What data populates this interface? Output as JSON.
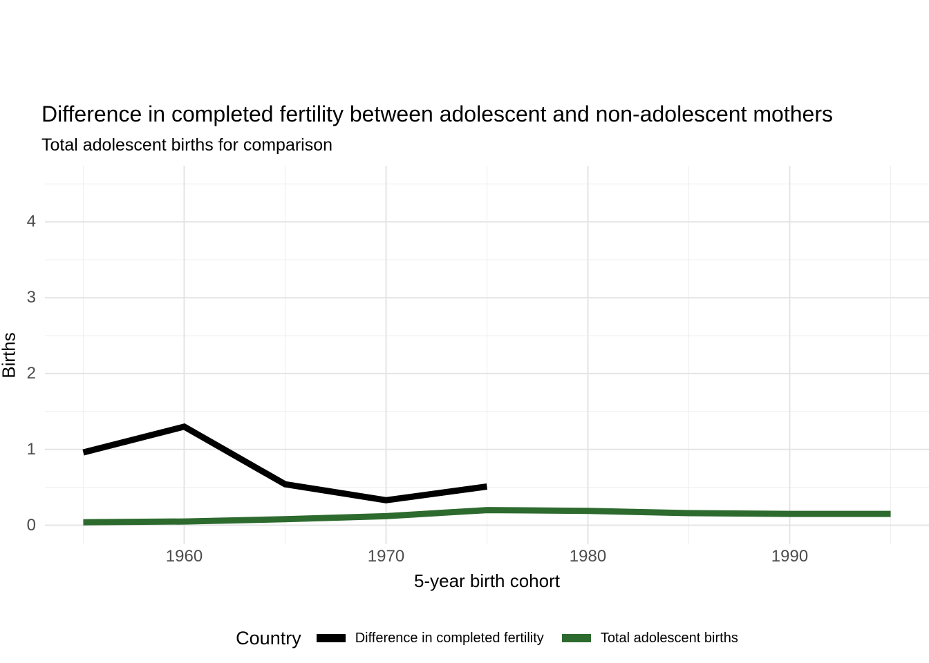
{
  "title": "Difference in completed fertility between adolescent and non-adolescent mothers",
  "subtitle": "Total adolescent births for comparison",
  "axes": {
    "x_label": "5-year birth cohort",
    "y_label": "Births"
  },
  "legend": {
    "title": "Country",
    "entries": [
      {
        "label": "Difference in completed fertility",
        "color": "#000000"
      },
      {
        "label": "Total adolescent births",
        "color": "#2d6a2e"
      }
    ]
  },
  "chart_data": {
    "type": "line",
    "x": [
      1955,
      1960,
      1965,
      1970,
      1975,
      1980,
      1985,
      1990,
      1995
    ],
    "series": [
      {
        "name": "Difference in completed fertility",
        "color": "#000000",
        "values": [
          0.96,
          1.3,
          0.54,
          0.33,
          0.51,
          null,
          null,
          null,
          null
        ]
      },
      {
        "name": "Total adolescent births",
        "color": "#2d6a2e",
        "values": [
          0.04,
          0.05,
          0.08,
          0.12,
          0.2,
          0.19,
          0.16,
          0.15,
          0.15
        ]
      }
    ],
    "title": "Difference in completed fertility between adolescent and non-adolescent mothers",
    "subtitle": "Total adolescent births for comparison",
    "xlabel": "5-year birth cohort",
    "ylabel": "Births",
    "x_ticks": [
      1960,
      1970,
      1980,
      1990
    ],
    "x_minor_ticks": [
      1955,
      1965,
      1975,
      1985,
      1995
    ],
    "y_ticks": [
      0,
      1,
      2,
      3,
      4
    ],
    "y_minor_ticks": [
      0.5,
      1.5,
      2.5,
      3.5,
      4.5
    ],
    "x_domain": [
      1953.1,
      1996.9
    ],
    "y_domain": [
      -0.25,
      4.74
    ],
    "grid": {
      "on": true,
      "major_color": "#e4e4e4",
      "minor_color": "#efefef"
    },
    "legend_position": "bottom",
    "line_width": 9
  },
  "colors": {
    "background": "#ffffff",
    "tick_text": "#4d4d4d"
  }
}
